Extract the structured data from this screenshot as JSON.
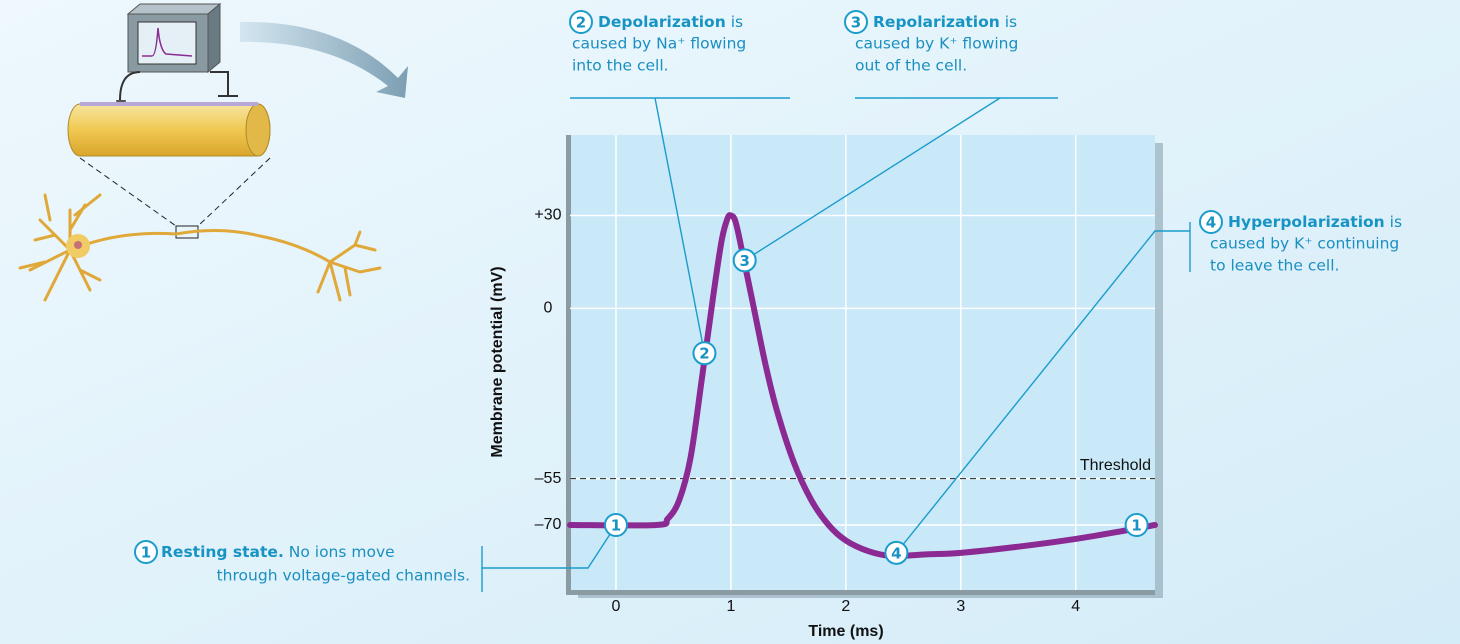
{
  "chart_data": {
    "type": "line",
    "xlabel": "Time (ms)",
    "ylabel": "Membrane potential (mV)",
    "xlim": [
      -0.4,
      4.69
    ],
    "ylim": [
      -91,
      56
    ],
    "xticks": [
      0,
      1,
      2,
      3,
      4
    ],
    "yticks": [
      {
        "value": 30,
        "label": "+30"
      },
      0,
      {
        "value": -55,
        "label": "–55"
      },
      {
        "value": -70,
        "label": "–70"
      }
    ],
    "grid": true,
    "series": [
      {
        "color": "#8b2a92",
        "x": [
          -0.4,
          0.35,
          0.45,
          0.55,
          0.65,
          0.75,
          0.85,
          0.92,
          0.97,
          1.0,
          1.04,
          1.1,
          1.2,
          1.3,
          1.4,
          1.55,
          1.7,
          1.85,
          2.0,
          2.2,
          2.4,
          2.7,
          3.0,
          3.5,
          4.0,
          4.4,
          4.69
        ],
        "values": [
          -70,
          -70,
          -68,
          -62,
          -48,
          -22,
          5,
          22,
          29,
          30,
          28,
          18,
          0,
          -18,
          -33,
          -50,
          -62,
          -70,
          -75,
          -78.5,
          -80,
          -79.5,
          -79,
          -77,
          -74.5,
          -72,
          -70
        ]
      }
    ],
    "threshold": {
      "value": -55,
      "label": "Threshold"
    },
    "markers": [
      {
        "label": "1",
        "x": 0.0,
        "y": -70
      },
      {
        "label": "2",
        "x": 0.77,
        "y": -14.5
      },
      {
        "label": "3",
        "x": 1.12,
        "y": 15.5
      },
      {
        "label": "4",
        "x": 2.44,
        "y": -79
      },
      {
        "label": "1",
        "x": 4.53,
        "y": -70
      }
    ],
    "annotations": [
      {
        "number": "1",
        "title": "Resting state.",
        "suffix": "No ions move",
        "lines": [
          "through voltage-gated channels."
        ]
      },
      {
        "number": "2",
        "title": "Depolarization",
        "suffix": "is",
        "lines": [
          "caused by Na⁺ flowing",
          "into the cell."
        ]
      },
      {
        "number": "3",
        "title": "Repolarization",
        "suffix": "is",
        "lines": [
          "caused by K⁺ flowing",
          "out of the cell."
        ]
      },
      {
        "number": "4",
        "title": "Hyperpolarization",
        "suffix": "is",
        "lines": [
          "caused by K⁺ continuing",
          "to leave the cell."
        ]
      }
    ]
  }
}
